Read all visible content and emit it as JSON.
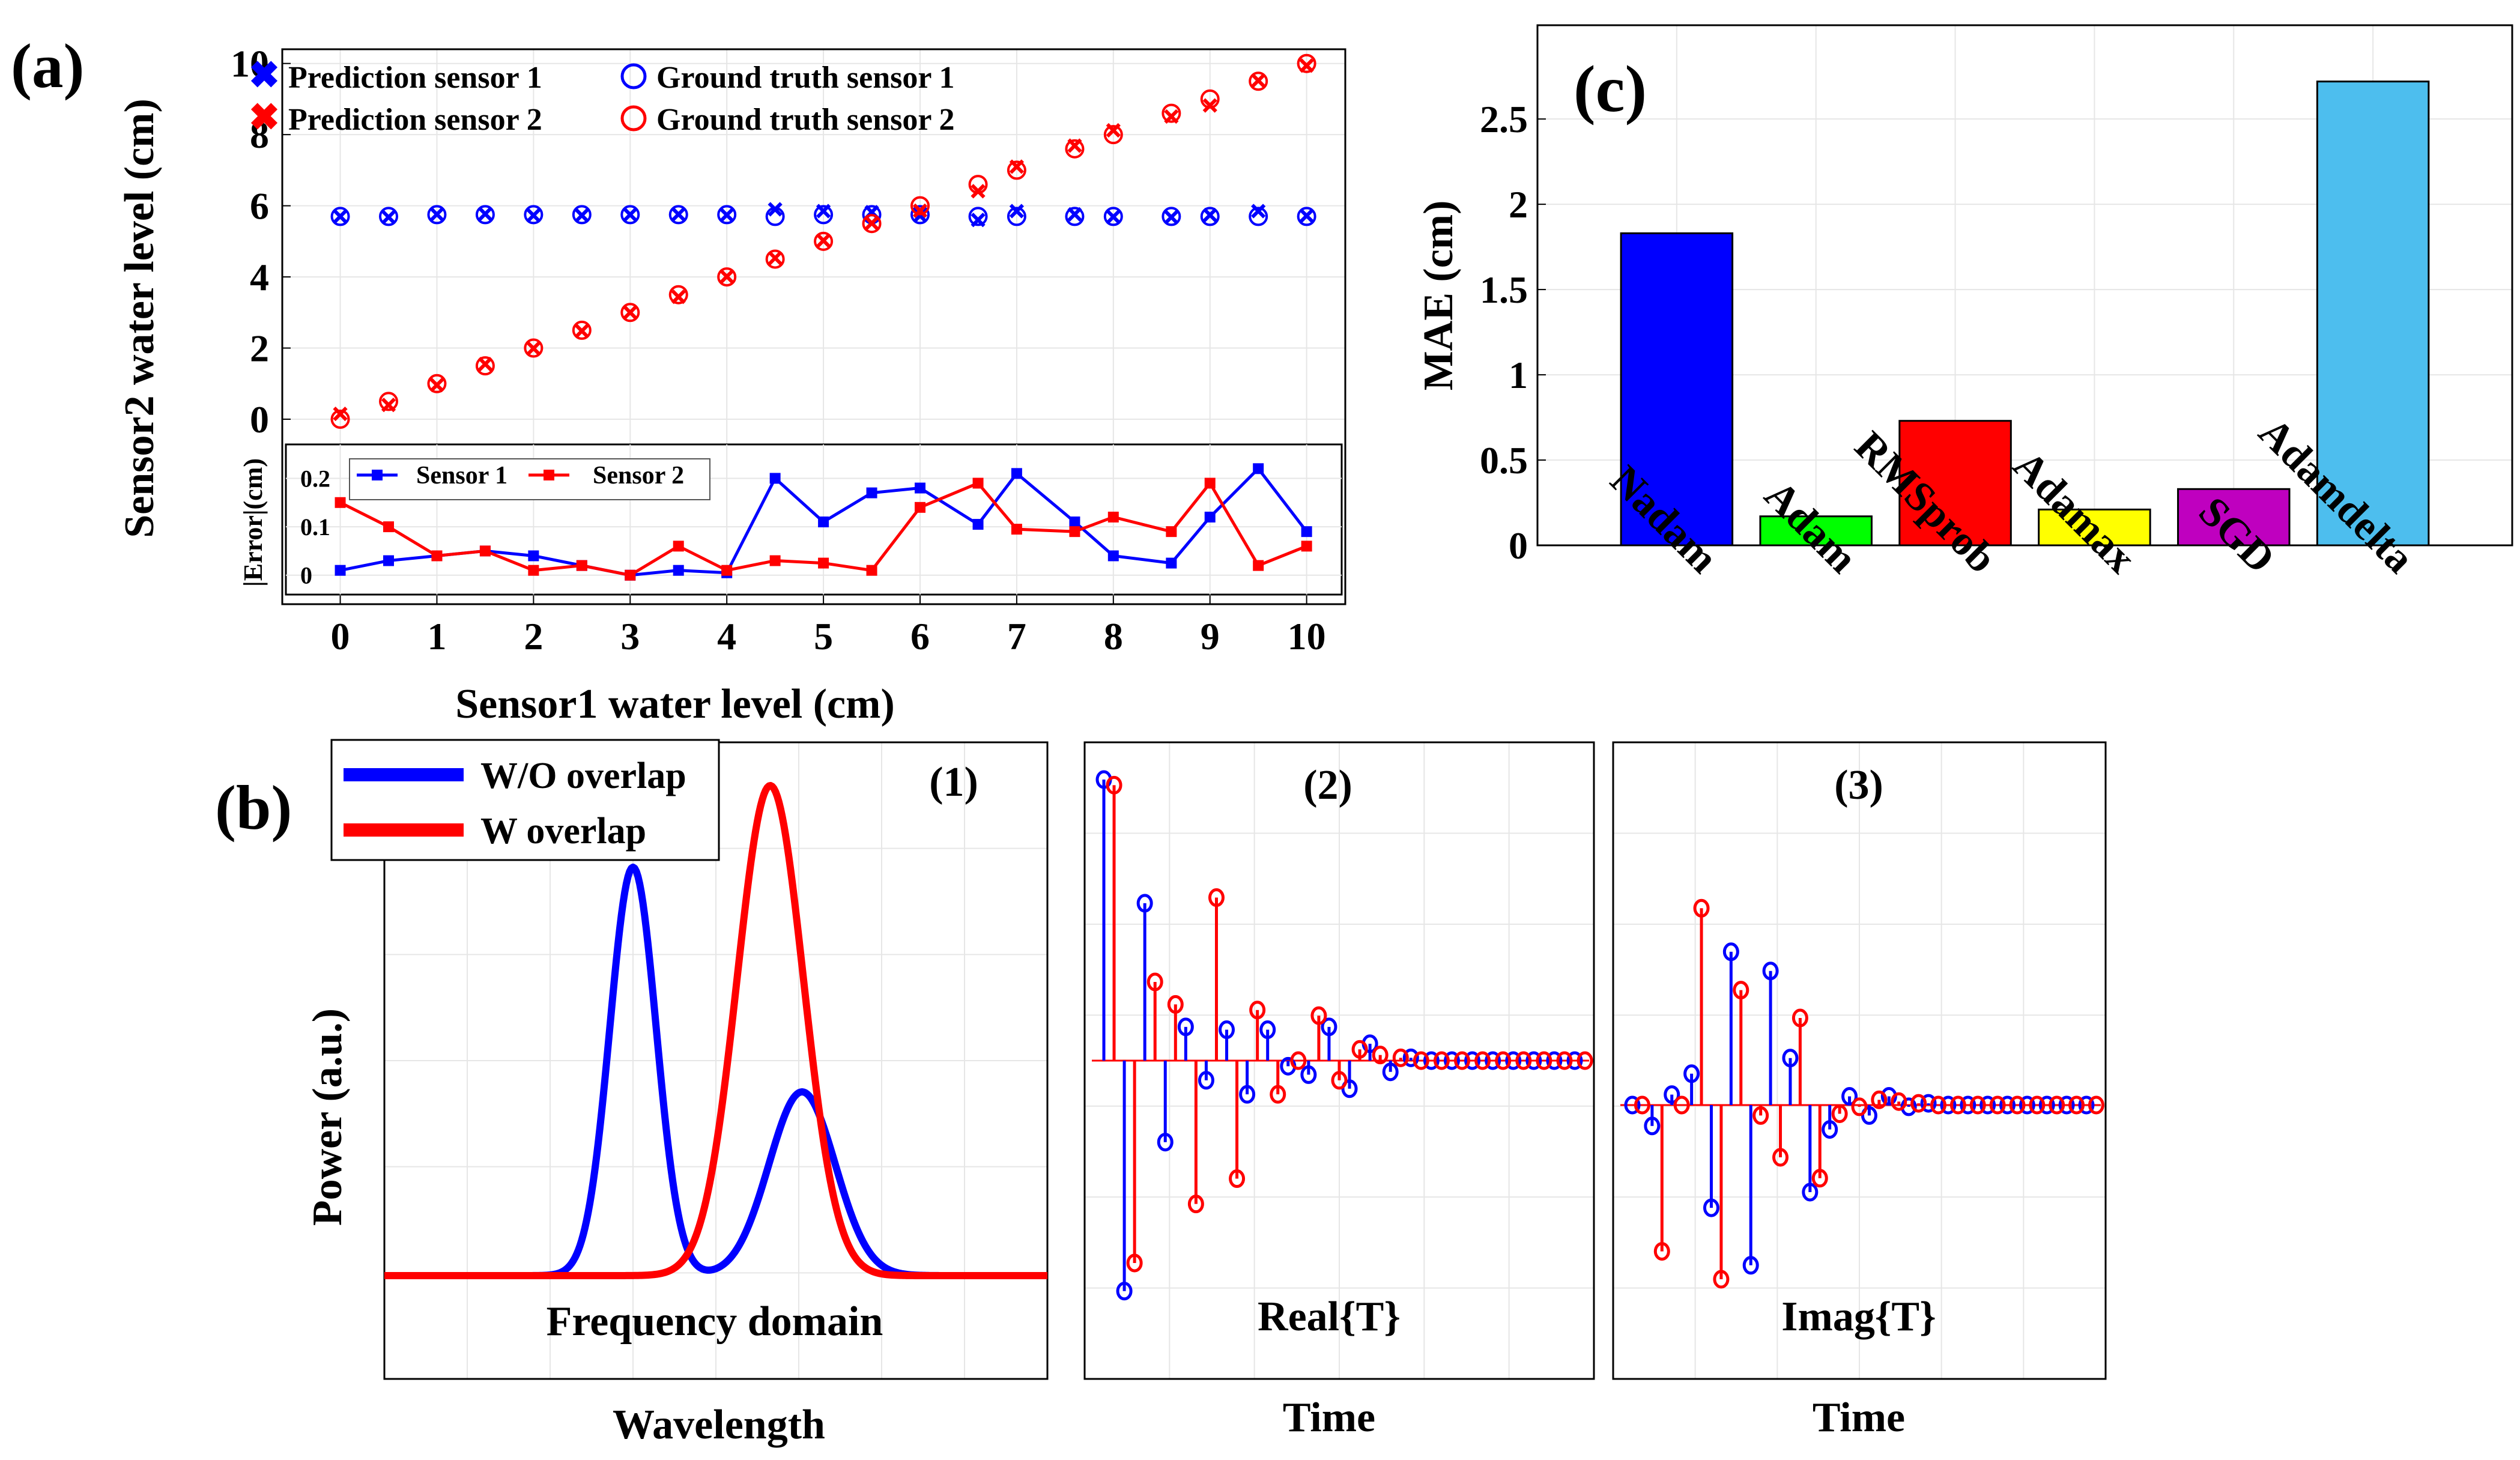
{
  "colors": {
    "blue": "#0000ff",
    "red": "#ff0000",
    "green": "#00ff00",
    "yellow": "#ffff00",
    "magenta": "#bf00bf",
    "cyan": "#4dbeee",
    "grid": "#e6e6e6"
  },
  "chart_data": [
    {
      "id": "a",
      "type": "scatter",
      "panel_label": "(a)",
      "xlabel": "Sensor1 water level (cm)",
      "ylabel": "Sensor2 water level (cm)",
      "xlim": [
        -0.6,
        10.4
      ],
      "ylim": [
        -5.2,
        10.4
      ],
      "xticks": [
        "0",
        "1",
        "2",
        "3",
        "4",
        "5",
        "6",
        "7",
        "8",
        "9",
        "10"
      ],
      "yticks": [
        "0",
        "2",
        "4",
        "6",
        "8",
        "10"
      ],
      "legend": {
        "pred1": "Prediction sensor 1",
        "gt1": "Ground truth sensor 1",
        "pred2": "Prediction sensor 2",
        "gt2": "Ground truth sensor 2"
      },
      "x": [
        0,
        0.5,
        1,
        1.5,
        2,
        2.5,
        3,
        3.5,
        4,
        4.5,
        5,
        5.5,
        6,
        6.6,
        7,
        7.6,
        8,
        8.6,
        9,
        9.5,
        10
      ],
      "series": [
        {
          "name": "Ground truth sensor 1",
          "values": [
            5.7,
            5.7,
            5.75,
            5.75,
            5.75,
            5.75,
            5.75,
            5.75,
            5.75,
            5.7,
            5.75,
            5.75,
            5.75,
            5.7,
            5.7,
            5.7,
            5.7,
            5.7,
            5.7,
            5.7,
            5.7
          ]
        },
        {
          "name": "Prediction sensor 1",
          "values": [
            5.7,
            5.68,
            5.76,
            5.77,
            5.73,
            5.73,
            5.75,
            5.76,
            5.74,
            5.9,
            5.85,
            5.82,
            5.72,
            5.6,
            5.85,
            5.76,
            5.69,
            5.68,
            5.74,
            5.85,
            5.72
          ]
        },
        {
          "name": "Ground truth sensor 2",
          "values": [
            0,
            0.5,
            1,
            1.5,
            2,
            2.5,
            3,
            3.5,
            4,
            4.5,
            5,
            5.5,
            6,
            6.6,
            7,
            7.6,
            8,
            8.6,
            9,
            9.5,
            10
          ]
        },
        {
          "name": "Prediction sensor 2",
          "values": [
            0.15,
            0.4,
            0.96,
            1.55,
            1.99,
            2.48,
            3.0,
            3.44,
            4.01,
            4.53,
            5.02,
            5.51,
            5.86,
            6.41,
            7.1,
            7.69,
            8.12,
            8.51,
            8.82,
            9.52,
            9.94
          ]
        }
      ]
    },
    {
      "id": "a_inset",
      "type": "line",
      "ylabel": "|Error|(cm)",
      "ylim": [
        -0.04,
        0.27
      ],
      "yticks": [
        "0",
        "0.1",
        "0.2"
      ],
      "x": [
        0,
        0.5,
        1,
        1.5,
        2,
        2.5,
        3,
        3.5,
        4,
        4.5,
        5,
        5.5,
        6,
        6.6,
        7,
        7.6,
        8,
        8.6,
        9,
        9.5,
        10
      ],
      "series": [
        {
          "name": "Sensor 1",
          "values": [
            0.01,
            0.03,
            0.04,
            0.05,
            0.04,
            0.02,
            0.0,
            0.01,
            0.005,
            0.2,
            0.11,
            0.17,
            0.18,
            0.105,
            0.21,
            0.11,
            0.04,
            0.025,
            0.12,
            0.22,
            0.09
          ]
        },
        {
          "name": "Sensor 2",
          "values": [
            0.15,
            0.1,
            0.04,
            0.05,
            0.01,
            0.02,
            0.0,
            0.06,
            0.01,
            0.03,
            0.025,
            0.01,
            0.14,
            0.19,
            0.095,
            0.09,
            0.12,
            0.09,
            0.19,
            0.02,
            0.06
          ]
        }
      ]
    },
    {
      "id": "c",
      "type": "bar",
      "panel_label": "(c)",
      "ylabel": "MAE (cm)",
      "ylim": [
        0,
        3.05
      ],
      "yticks": [
        "0",
        "0.5",
        "1",
        "1.5",
        "2",
        "2.5"
      ],
      "categories": [
        "Nadam",
        "Adam",
        "RMSprob",
        "Adamax",
        "SGD",
        "Adamdelta"
      ],
      "values": [
        1.83,
        0.17,
        0.73,
        0.21,
        0.33,
        2.72
      ]
    },
    {
      "id": "b1",
      "type": "line",
      "panel_label": "(b)",
      "subtitle": "(1)",
      "annotation": "Frequency domain",
      "xlabel": "Wavelength",
      "ylabel": "Power (a.u.)",
      "legend": {
        "wo": "W/O overlap",
        "w": "W overlap"
      },
      "series": [
        {
          "name": "W/O overlap",
          "peaks": [
            {
              "center": 0.375,
              "width": 0.035,
              "height": 1.0
            },
            {
              "center": 0.63,
              "width": 0.05,
              "height": 0.45
            }
          ]
        },
        {
          "name": "W overlap",
          "peaks": [
            {
              "center": 0.582,
              "width": 0.05,
              "height": 1.2
            }
          ]
        }
      ]
    },
    {
      "id": "b2",
      "type": "stem",
      "subtitle": "(2)",
      "annotation": "Real{T}",
      "xlabel": "Time",
      "series": [
        {
          "name": "W/O overlap",
          "values": [
            1.0,
            -0.82,
            0.56,
            -0.29,
            0.12,
            -0.07,
            0.11,
            -0.12,
            0.11,
            -0.02,
            -0.05,
            0.12,
            -0.1,
            0.06,
            -0.04,
            0.01,
            0.0,
            0.0,
            0.0,
            0.0,
            0.0,
            0.0,
            0.0,
            0.0
          ]
        },
        {
          "name": "W overlap",
          "values": [
            0.98,
            -0.72,
            0.28,
            0.2,
            -0.51,
            0.58,
            -0.42,
            0.18,
            -0.12,
            0.0,
            0.16,
            -0.07,
            0.04,
            0.02,
            0.01,
            0.0,
            0.0,
            0.0,
            0.0,
            0.0,
            0.0,
            0.0,
            0.0,
            0.0
          ]
        }
      ]
    },
    {
      "id": "b3",
      "type": "stem",
      "subtitle": "(3)",
      "annotation": "Imag{T}",
      "xlabel": "Time",
      "series": [
        {
          "name": "W/O overlap",
          "values": [
            0.0,
            -0.12,
            0.06,
            0.18,
            -0.59,
            0.88,
            -0.92,
            0.77,
            0.27,
            -0.5,
            -0.14,
            0.05,
            -0.06,
            0.05,
            -0.01,
            0.01,
            0.0,
            0.0,
            0.0,
            0.0,
            0.0,
            0.0,
            0.0,
            0.0
          ]
        },
        {
          "name": "W overlap",
          "values": [
            0.0,
            -0.84,
            0.0,
            1.13,
            -1.0,
            0.66,
            -0.06,
            -0.3,
            0.5,
            -0.42,
            -0.05,
            -0.01,
            0.03,
            0.02,
            0.01,
            0.0,
            0.0,
            0.0,
            0.0,
            0.0,
            0.0,
            0.0,
            0.0,
            0.0
          ]
        }
      ]
    }
  ]
}
